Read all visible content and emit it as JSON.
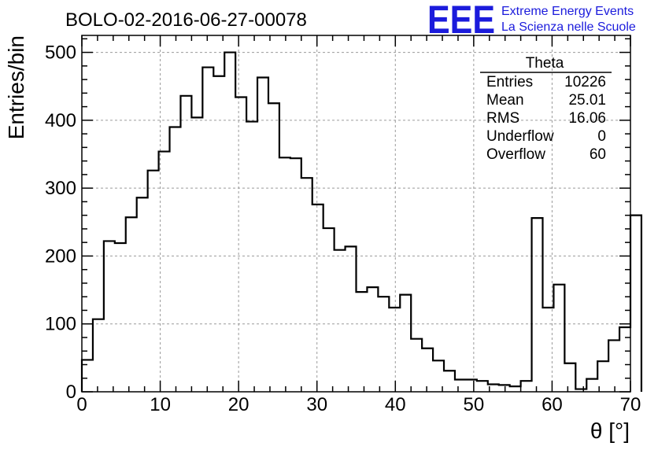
{
  "header": {
    "title": "BOLO-02-2016-06-27-00078",
    "logo_mark": "EEE",
    "logo_line1": "Extreme Energy Events",
    "logo_line2": "La Scienza nelle Scuole",
    "logo_color": "#1b1bdc"
  },
  "stats": {
    "name": "Theta",
    "rows": [
      {
        "label": "Entries",
        "value": "10226"
      },
      {
        "label": "Mean",
        "value": "25.01"
      },
      {
        "label": "RMS",
        "value": "16.06"
      },
      {
        "label": "Underflow",
        "value": "0"
      },
      {
        "label": "Overflow",
        "value": "60"
      }
    ]
  },
  "chart_data": {
    "type": "histogram",
    "xlabel": "θ [°]",
    "ylabel": "Entries/bin",
    "xlim": [
      0,
      70
    ],
    "ylim": [
      0,
      525
    ],
    "grid": true,
    "bin_width": 1.4,
    "x_ticks": [
      0,
      10,
      20,
      30,
      40,
      50,
      60,
      70
    ],
    "y_ticks": [
      0,
      100,
      200,
      300,
      400,
      500
    ],
    "x_tick_labels": [
      "0",
      "10",
      "20",
      "30",
      "40",
      "50",
      "60",
      "70"
    ],
    "y_tick_labels": [
      "0",
      "100",
      "200",
      "300",
      "400",
      "500"
    ],
    "values": [
      47,
      107,
      222,
      219,
      257,
      286,
      326,
      354,
      390,
      436,
      404,
      478,
      465,
      500,
      434,
      398,
      463,
      425,
      345,
      344,
      315,
      276,
      241,
      209,
      214,
      147,
      154,
      140,
      124,
      143,
      78,
      64,
      46,
      31,
      18,
      18,
      16,
      11,
      10,
      8,
      16,
      256,
      124,
      158,
      42,
      4,
      19,
      45,
      76,
      95,
      260
    ]
  }
}
